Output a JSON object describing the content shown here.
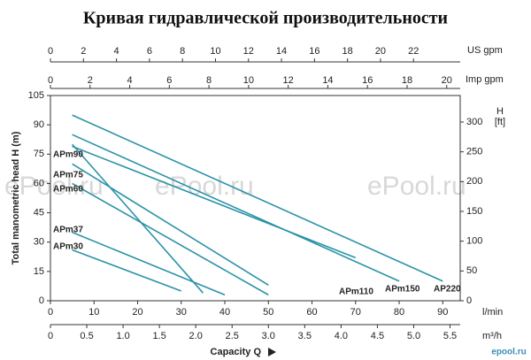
{
  "chart_data": {
    "type": "line",
    "title": "Кривая гидравлической производительности",
    "ylabel": "Total manometric head H (m)",
    "xlabel": "Capacity Q",
    "x_unit": "l/min",
    "xlim": [
      0,
      94
    ],
    "xticks": [
      0,
      10,
      20,
      30,
      40,
      50,
      60,
      70,
      80,
      90
    ],
    "x_m3h": {
      "unit": "m³/h",
      "lim": [
        0,
        5.64
      ],
      "ticks": [
        0,
        0.5,
        {
          "value": 1,
          "label": "1.0"
        },
        1.5,
        {
          "value": 2,
          "label": "2.0"
        },
        2.5,
        {
          "value": 3,
          "label": "3.0"
        },
        3.5,
        {
          "value": 4,
          "label": "4.0"
        },
        4.5,
        {
          "value": 5,
          "label": "5.0"
        },
        5.5
      ]
    },
    "x_us_gpm": {
      "unit": "US gpm",
      "lim": [
        0,
        24.83
      ],
      "ticks": [
        0,
        2,
        4,
        6,
        8,
        10,
        12,
        14,
        16,
        18,
        20,
        22
      ]
    },
    "x_imp_gpm": {
      "unit": "Imp gpm",
      "lim": [
        0,
        20.68
      ],
      "ticks": [
        0,
        2,
        4,
        6,
        8,
        10,
        12,
        14,
        16,
        18,
        20
      ]
    },
    "ylim": [
      0,
      105
    ],
    "yticks": [
      0,
      15,
      30,
      45,
      60,
      75,
      90,
      105
    ],
    "y2title": "H",
    "y2unit": "[ft]",
    "y2lim": [
      0,
      344.5
    ],
    "y2ticks": [
      0,
      50,
      100,
      150,
      200,
      250,
      300
    ],
    "series": [
      {
        "name": "AP220",
        "color": "#2b93a8",
        "x": [
          5,
          90
        ],
        "values": [
          95,
          10
        ]
      },
      {
        "name": "APm150",
        "color": "#2b93a8",
        "x": [
          5,
          80
        ],
        "values": [
          85,
          10
        ]
      },
      {
        "name": "APm110",
        "color": "#2b93a8",
        "x": [
          5,
          70
        ],
        "values": [
          79,
          22
        ]
      },
      {
        "name": "APm90",
        "color": "#2b93a8",
        "x": [
          5,
          35
        ],
        "values": [
          80,
          4
        ]
      },
      {
        "name": "APm75",
        "color": "#2b93a8",
        "x": [
          5,
          50
        ],
        "values": [
          70,
          8
        ]
      },
      {
        "name": "APm60",
        "color": "#2b93a8",
        "x": [
          5,
          50
        ],
        "values": [
          60,
          3
        ]
      },
      {
        "name": "APm37",
        "color": "#2b93a8",
        "x": [
          5,
          40
        ],
        "values": [
          35,
          3
        ]
      },
      {
        "name": "APm30",
        "color": "#2b93a8",
        "x": [
          5,
          30
        ],
        "values": [
          26,
          5
        ]
      }
    ],
    "watermark": "ePool.ru",
    "logo": "epool.ru"
  }
}
